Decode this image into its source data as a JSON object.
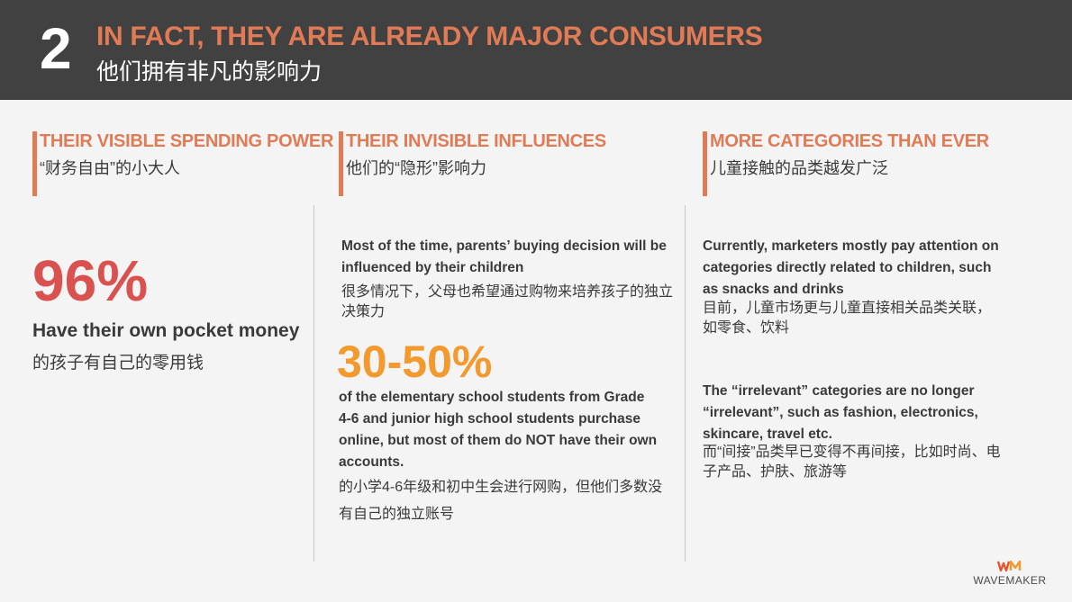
{
  "header": {
    "number": "2",
    "title_en": "IN FACT, THEY ARE ALREADY MAJOR CONSUMERS",
    "title_cn": "他们拥有非凡的影响力"
  },
  "columns": [
    {
      "title_en": "THEIR VISIBLE SPENDING POWER",
      "title_cn": "“财务自由”的小大人"
    },
    {
      "title_en": "THEIR INVISIBLE INFLUENCES",
      "title_cn": "他们的“隐形”影响力"
    },
    {
      "title_en": "MORE CATEGORIES THAN EVER",
      "title_cn": "儿童接触的品类越发广泛"
    }
  ],
  "col1": {
    "stat": "96%",
    "stat_en": "Have their own pocket money",
    "stat_cn": "的孩子有自己的零用钱"
  },
  "col2": {
    "para1_en": "Most of the time, parents’ buying decision will be influenced by their children",
    "para1_cn": "很多情况下，父母也希望通过购物来培养孩子的独立决策力",
    "stat": "30-50%",
    "para2_en": "of the elementary school students from Grade 4-6 and junior high school students purchase online, but most of them do NOT have their own accounts.",
    "para2_cn": "的小学4-6年级和初中生会进行网购，但他们多数没有自己的独立账号"
  },
  "col3": {
    "para1_en": "Currently, marketers mostly pay attention on categories directly related to children, such as snacks and drinks",
    "para1_cn": "目前，儿童市场更与儿童直接相关品类关联，如零食、饮料",
    "para2_en": "The “irrelevant” categories are no longer “irrelevant”, such as fashion, electronics, skincare, travel etc.",
    "para2_cn": "而“间接”品类早已变得不再间接，比如时尚、电子产品、护肤、旅游等"
  },
  "logo": {
    "mark": "WM",
    "name": "WAVEMAKER"
  },
  "colors": {
    "accent": "#e07b56",
    "red": "#d9524f",
    "orange": "#f29a2e",
    "header_bg": "#414141"
  }
}
